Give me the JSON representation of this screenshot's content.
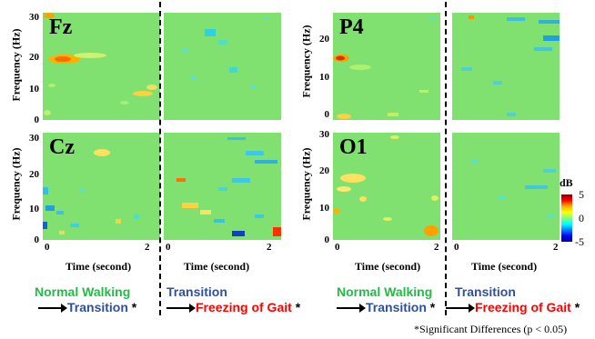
{
  "y_axis_label": "Frequency (Hz)",
  "x_axis_label": "Time (second)",
  "x_ticks": [
    "0",
    "2"
  ],
  "channels": {
    "fz": {
      "name": "Fz",
      "y_ticks": [
        "30",
        "20",
        "10",
        "0"
      ]
    },
    "cz": {
      "name": "Cz",
      "y_ticks": [
        "30",
        "20",
        "10",
        "0"
      ]
    },
    "p4": {
      "name": "P4",
      "y_ticks": [
        "20",
        "10",
        "0"
      ]
    },
    "o1": {
      "name": "O1",
      "y_ticks": [
        "30",
        "20",
        "10",
        "0"
      ]
    }
  },
  "comparisons": {
    "left": {
      "from_label": "Normal Walking",
      "to_label": "Transition",
      "mark": "*",
      "from_color": "#22bb44",
      "to_color": "#2f4f9f"
    },
    "right": {
      "from_label": "Transition",
      "to_label": "Freezing of Gait",
      "mark": "*",
      "from_color": "#2f4f9f",
      "to_color": "#ff0000"
    }
  },
  "colorbar": {
    "unit": "dB",
    "max": "5",
    "mid": "0",
    "min": "-5",
    "colors": [
      "#7f0000",
      "#ff0000",
      "#ffff00",
      "#80ff80",
      "#00ffff",
      "#0000ff",
      "#00007f"
    ]
  },
  "footnote": "*Significant Differences  (p < 0.05)",
  "background_color": "#80e070"
}
